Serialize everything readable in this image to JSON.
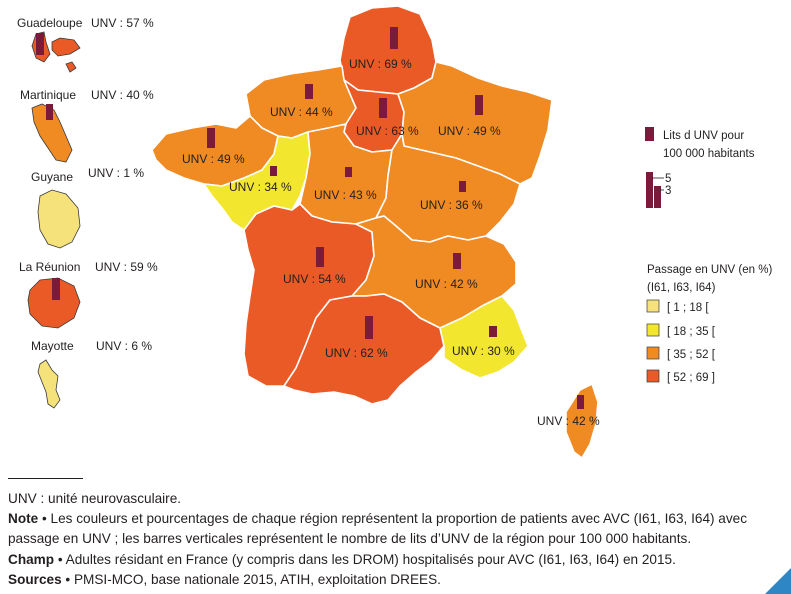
{
  "legend": {
    "beds_title_line1": "Lits d UNV pour",
    "beds_title_line2": "100 000 habitants",
    "beds_scale_high": "5",
    "beds_scale_low": "3",
    "passage_title_line1": "Passage en UNV (en %)",
    "passage_title_line2": "(I61, I63, I64)",
    "classes": [
      {
        "label": "[ 1 ; 18 [",
        "color": "#f5e27a"
      },
      {
        "label": "[ 18 ; 35 [",
        "color": "#f3e62e"
      },
      {
        "label": "[ 35 ; 52 [",
        "color": "#f08a22"
      },
      {
        "label": "[ 52 ; 69 ]",
        "color": "#ea5a27"
      }
    ]
  },
  "colors": {
    "bar": "#7b1a3a",
    "border": "#ffffff",
    "island_border": "#3a3a3a"
  },
  "regions": [
    {
      "name": "Hauts-de-France",
      "label": "UNV : 69 %",
      "pct": 69,
      "color": "#ea5a27"
    },
    {
      "name": "Normandie",
      "label": "UNV : 44 %",
      "pct": 44,
      "color": "#f08a22"
    },
    {
      "name": "Ile-de-France",
      "label": "UNV : 63 %",
      "pct": 63,
      "color": "#ea5a27"
    },
    {
      "name": "Grand Est",
      "label": "UNV : 49 %",
      "pct": 49,
      "color": "#f08a22"
    },
    {
      "name": "Bretagne",
      "label": "UNV : 49 %",
      "pct": 49,
      "color": "#f08a22"
    },
    {
      "name": "Pays de la Loire",
      "label": "UNV : 34 %",
      "pct": 34,
      "color": "#f3e62e"
    },
    {
      "name": "Centre-Val de Loire",
      "label": "UNV : 43 %",
      "pct": 43,
      "color": "#f08a22"
    },
    {
      "name": "Bourgogne-Franche-Comte",
      "label": "UNV : 36 %",
      "pct": 36,
      "color": "#f08a22"
    },
    {
      "name": "Nouvelle-Aquitaine",
      "label": "UNV : 54 %",
      "pct": 54,
      "color": "#ea5a27"
    },
    {
      "name": "Auvergne-Rhone-Alpes",
      "label": "UNV : 42 %",
      "pct": 42,
      "color": "#f08a22"
    },
    {
      "name": "Occitanie",
      "label": "UNV : 62 %",
      "pct": 62,
      "color": "#ea5a27"
    },
    {
      "name": "Provence-Alpes-Cote d'Azur",
      "label": "UNV : 30 %",
      "pct": 30,
      "color": "#f3e62e"
    },
    {
      "name": "Corse",
      "label": "UNV : 42 %",
      "pct": 42,
      "color": "#f08a22"
    }
  ],
  "overseas": [
    {
      "name": "Guadeloupe",
      "label": "UNV : 57 %",
      "pct": 57,
      "color": "#ea5a27"
    },
    {
      "name": "Martinique",
      "label": "UNV : 40 %",
      "pct": 40,
      "color": "#f08a22"
    },
    {
      "name": "Guyane",
      "label": "UNV : 1 %",
      "pct": 1,
      "color": "#f5e27a"
    },
    {
      "name": "La Réunion",
      "label": "UNV : 59 %",
      "pct": 59,
      "color": "#ea5a27"
    },
    {
      "name": "Mayotte",
      "label": "UNV : 6 %",
      "pct": 6,
      "color": "#f5e27a"
    }
  ],
  "notes": {
    "abbrev": "UNV : unité neurovasculaire.",
    "note_label": "Note",
    "note_text": " • Les couleurs et pourcentages de chaque région représentent la proportion de patients avec AVC (I61, I63, I64) avec passage en UNV ; les barres verticales représentent le nombre de lits d’UNV de la région pour 100 000 habitants.",
    "champ_label": "Champ",
    "champ_text": " • Adultes résidant en France (y compris dans les DROM) hospitalisés pour AVC (I61, I63, I64) en 2015.",
    "sources_label": "Sources",
    "sources_text": " • PMSI-MCO, base nationale 2015, ATIH, exploitation DREES."
  }
}
